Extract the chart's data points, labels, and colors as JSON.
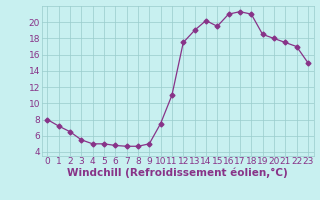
{
  "x": [
    0,
    1,
    2,
    3,
    4,
    5,
    6,
    7,
    8,
    9,
    10,
    11,
    12,
    13,
    14,
    15,
    16,
    17,
    18,
    19,
    20,
    21,
    22,
    23
  ],
  "y": [
    8,
    7.2,
    6.5,
    5.5,
    5,
    5,
    4.8,
    4.7,
    4.7,
    5,
    7.5,
    11,
    17.5,
    19,
    20.2,
    19.5,
    21,
    21.3,
    21,
    18.5,
    18,
    17.5,
    17,
    15
  ],
  "line_color": "#883388",
  "marker": "D",
  "marker_size": 2.5,
  "bg_color": "#c8f0f0",
  "xlabel": "Windchill (Refroidissement éolien,°C)",
  "xlabel_color": "#883388",
  "xlabel_fontsize": 7.5,
  "ylabel_ticks": [
    4,
    6,
    8,
    10,
    12,
    14,
    16,
    18,
    20
  ],
  "ylim": [
    3.5,
    22.0
  ],
  "xlim": [
    -0.5,
    23.5
  ],
  "xtick_labels": [
    "0",
    "1",
    "2",
    "3",
    "4",
    "5",
    "6",
    "7",
    "8",
    "9",
    "10",
    "11",
    "12",
    "13",
    "14",
    "15",
    "16",
    "17",
    "18",
    "19",
    "20",
    "21",
    "22",
    "23"
  ],
  "tick_color": "#883388",
  "tick_fontsize": 6.5,
  "grid_line_color": "#99cccc",
  "grid_linewidth": 0.5
}
